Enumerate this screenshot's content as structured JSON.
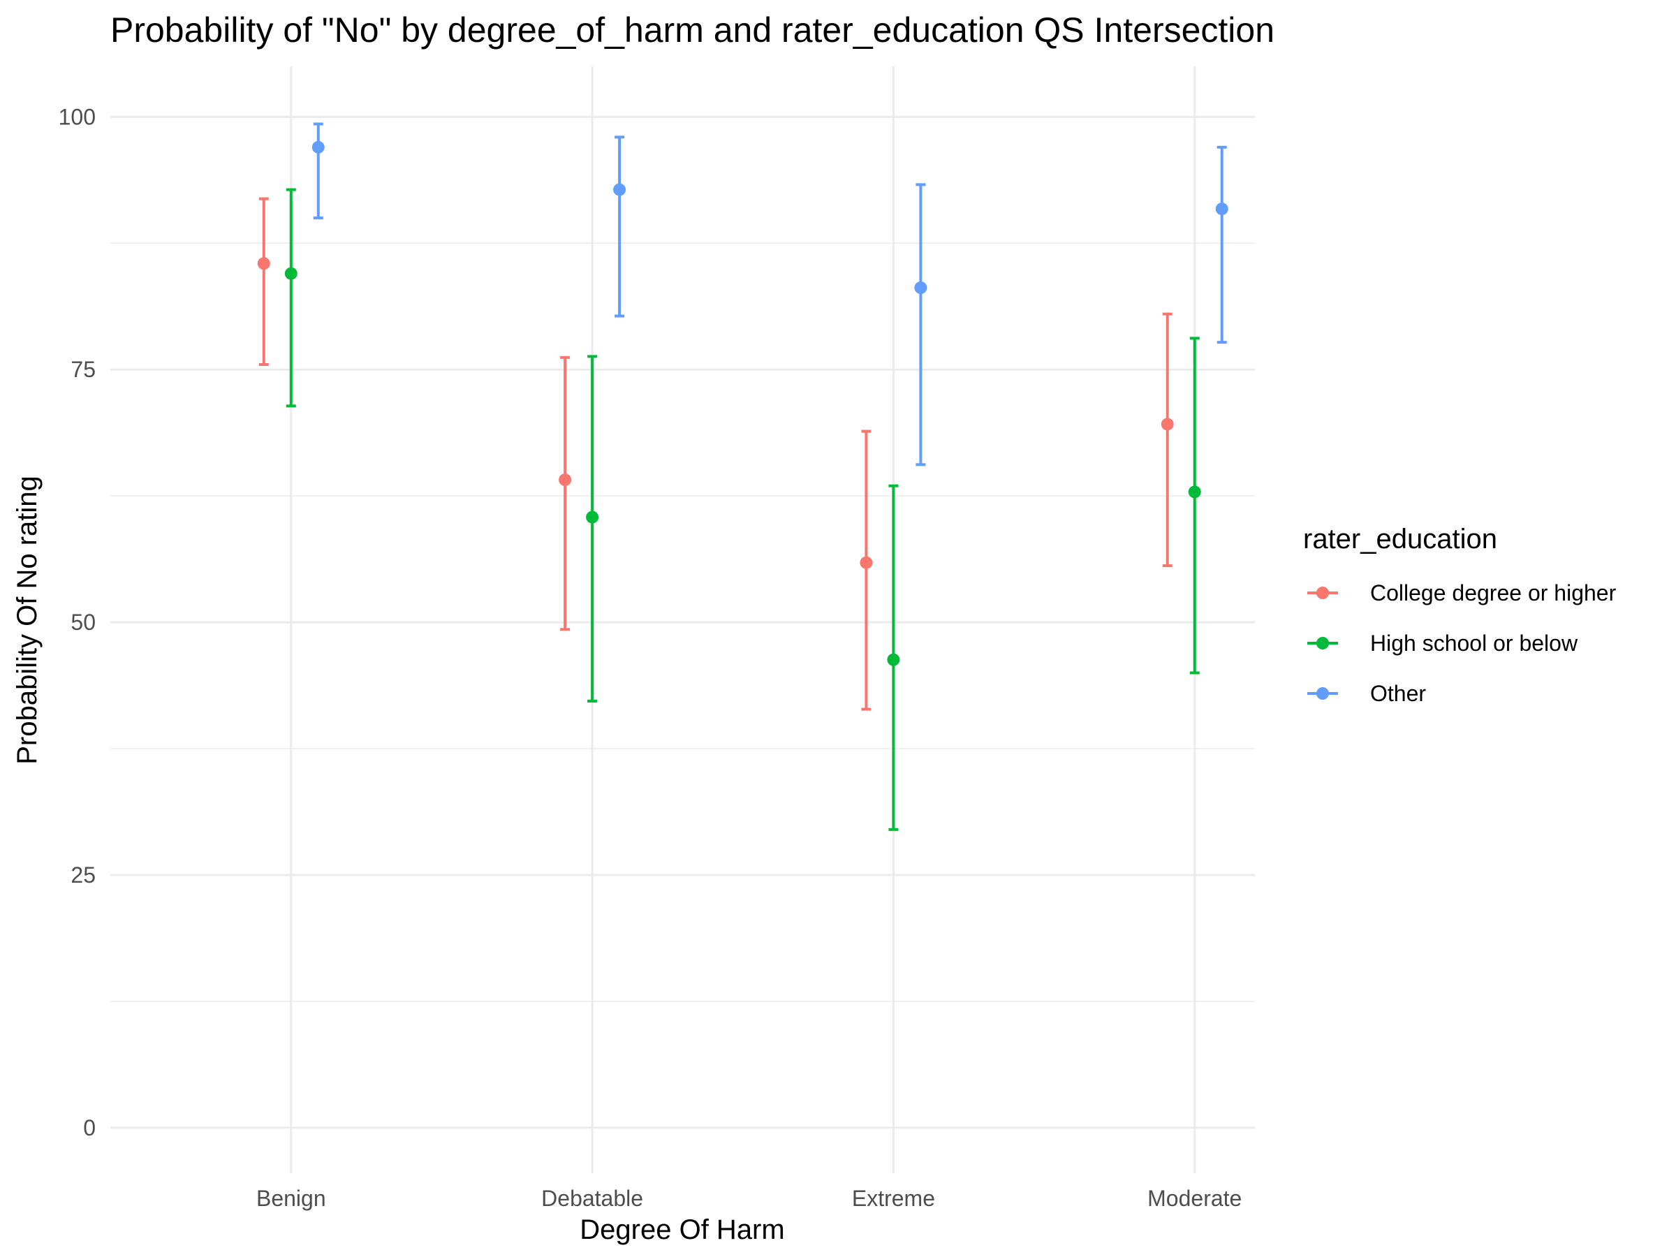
{
  "chart_data": {
    "type": "scatter",
    "title": "Probability of \"No\" by degree_of_harm and  rater_education  QS Intersection",
    "xlabel": "Degree Of Harm",
    "ylabel": "Probability Of No rating",
    "categories": [
      "Benign",
      "Debatable",
      "Extreme",
      "Moderate"
    ],
    "ylim": [
      -4.5,
      105
    ],
    "yticks": [
      0,
      25,
      50,
      75,
      100
    ],
    "grid": true,
    "legend": {
      "title": "rater_education",
      "position": "right"
    },
    "series": [
      {
        "name": "College degree or higher",
        "color": "#F8766D",
        "values": [
          85.5,
          64.1,
          55.9,
          69.6
        ],
        "lower": [
          75.5,
          49.3,
          41.4,
          55.6
        ],
        "upper": [
          91.9,
          76.2,
          68.9,
          80.5
        ]
      },
      {
        "name": "High school or below",
        "color": "#00BA38",
        "values": [
          84.5,
          60.4,
          46.3,
          62.9
        ],
        "lower": [
          71.4,
          42.2,
          29.5,
          45.0
        ],
        "upper": [
          92.8,
          76.3,
          63.5,
          78.1
        ]
      },
      {
        "name": "Other",
        "color": "#619CFF",
        "values": [
          97.0,
          92.8,
          83.1,
          90.9
        ],
        "lower": [
          90.0,
          80.3,
          65.6,
          77.7
        ],
        "upper": [
          99.3,
          98.0,
          93.3,
          97.0
        ]
      }
    ]
  }
}
